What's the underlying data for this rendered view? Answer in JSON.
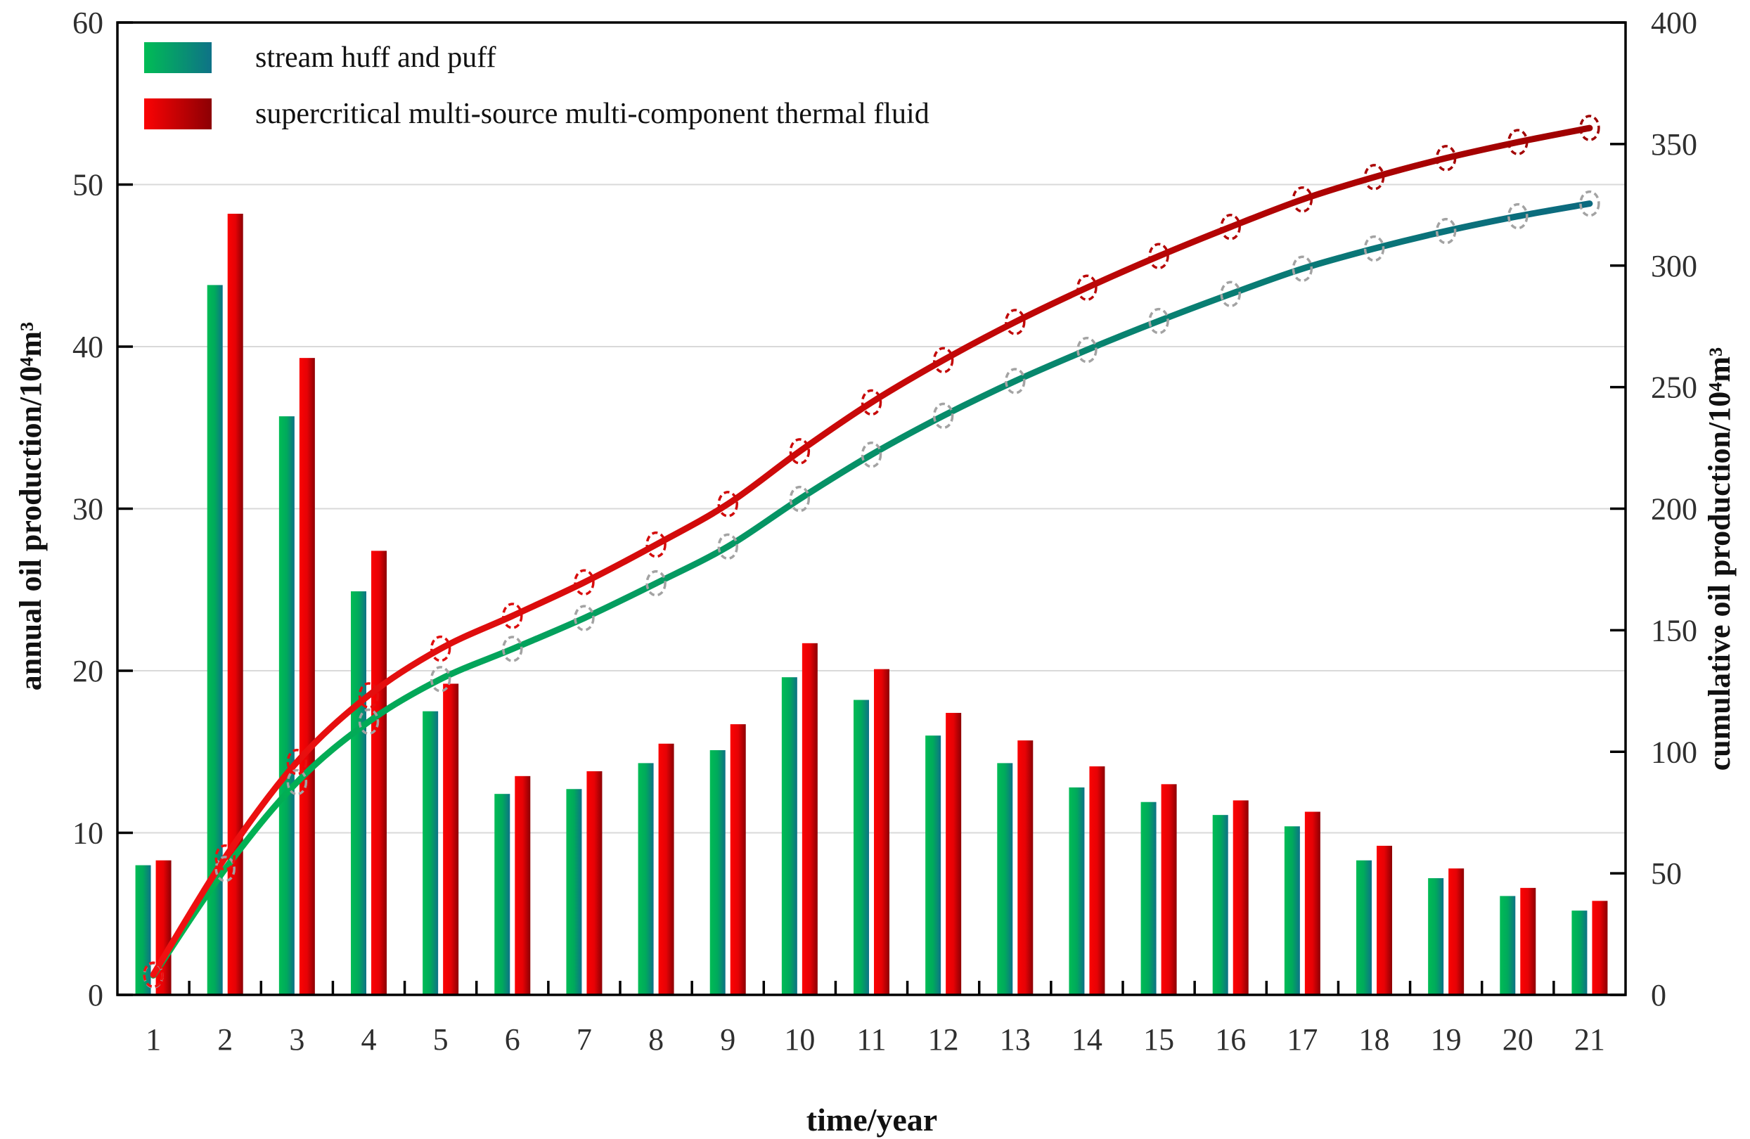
{
  "figure": {
    "background": "#ffffff",
    "plot_border_color": "#000000",
    "grid_color": "#d9d9d9",
    "tick_text_color": "#2f2f2f"
  },
  "legend": {
    "position": "top-left",
    "items": [
      {
        "label": "stream huff and puff",
        "swatch_gradient": [
          "#00bc55",
          "#0e7287"
        ]
      },
      {
        "label": "supercritical multi-source multi-component thermal fluid",
        "swatch_gradient": [
          "#fb0304",
          "#8c0004"
        ]
      }
    ]
  },
  "chart_data": {
    "type": "bar+line",
    "x": [
      1,
      2,
      3,
      4,
      5,
      6,
      7,
      8,
      9,
      10,
      11,
      12,
      13,
      14,
      15,
      16,
      17,
      18,
      19,
      20,
      21
    ],
    "xlabel": "time/year",
    "left_axis": {
      "label": "annual oil production/10⁴m³",
      "min": 0,
      "max": 60,
      "tick_step": 10
    },
    "right_axis": {
      "label": "cumulative oil production/10⁴m³",
      "min": 0,
      "max": 400,
      "tick_step": 50
    },
    "grid": true,
    "legend_position": "top-left",
    "series": [
      {
        "name": "stream huff and puff (annual)",
        "type": "bar",
        "axis": "left",
        "gradient": [
          "#00bc55",
          "#00a95c",
          "#0e7287"
        ],
        "values": [
          8.0,
          43.8,
          35.7,
          24.9,
          17.5,
          12.4,
          12.7,
          14.3,
          15.1,
          19.6,
          18.2,
          16.0,
          14.3,
          12.8,
          11.9,
          11.1,
          10.4,
          8.3,
          7.2,
          6.1,
          5.2
        ]
      },
      {
        "name": "supercritical multi-source multi-component thermal fluid (annual)",
        "type": "bar",
        "axis": "left",
        "gradient": [
          "#fb0304",
          "#e60205",
          "#8c0004"
        ],
        "values": [
          8.3,
          48.2,
          39.3,
          27.4,
          19.2,
          13.5,
          13.8,
          15.5,
          16.7,
          21.7,
          20.1,
          17.4,
          15.7,
          14.1,
          13.0,
          12.0,
          11.3,
          9.2,
          7.8,
          6.6,
          5.8
        ]
      },
      {
        "name": "stream huff and puff (cumulative)",
        "type": "line",
        "axis": "right",
        "gradient": [
          "#00b74f",
          "#0c6880"
        ],
        "marker": "dashed-open-ellipse",
        "marker_color": "#a3a3a3",
        "values": [
          8.0,
          51.8,
          87.5,
          112.4,
          129.9,
          142.3,
          155.0,
          169.3,
          184.4,
          204.0,
          222.2,
          238.2,
          252.5,
          265.3,
          277.2,
          288.3,
          298.7,
          307.0,
          314.2,
          320.3,
          325.5
        ]
      },
      {
        "name": "supercritical multi-source multi-component thermal fluid (cumulative)",
        "type": "line",
        "axis": "right",
        "gradient": [
          "#f31111",
          "#9c0000"
        ],
        "marker": "dashed-open-ellipse",
        "marker_color": "gradient",
        "values": [
          8.3,
          56.5,
          95.8,
          123.2,
          142.4,
          155.9,
          169.7,
          185.2,
          201.9,
          223.6,
          243.7,
          261.1,
          276.8,
          290.9,
          303.9,
          315.9,
          327.2,
          336.4,
          344.2,
          350.8,
          356.6
        ]
      }
    ]
  }
}
